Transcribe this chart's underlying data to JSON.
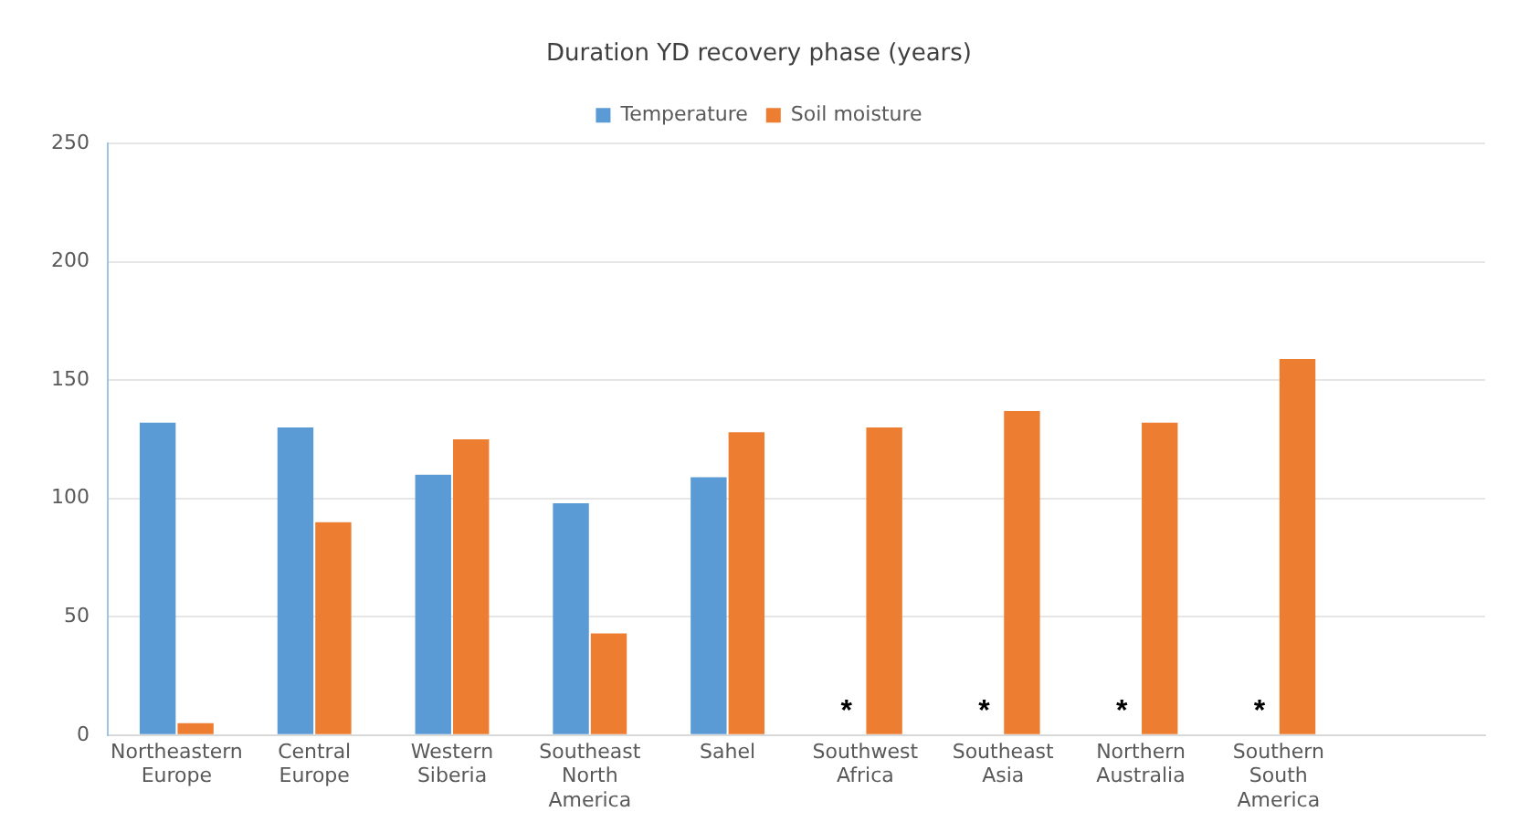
{
  "chart_data": {
    "type": "bar",
    "title": "Duration YD recovery phase (years)",
    "categories": [
      "Northeastern Europe",
      "Central Europe",
      "Western Siberia",
      "Southeast North America",
      "Sahel",
      "Southwest Africa",
      "Southeast Asia",
      "Northern Australia",
      "Southern South America",
      null
    ],
    "series": [
      {
        "name": "Temperature",
        "color": "#5b9bd5",
        "values": [
          132,
          130,
          110,
          98,
          109,
          null,
          null,
          null,
          null,
          null
        ]
      },
      {
        "name": "Soil moisture",
        "color": "#ed7d31",
        "values": [
          5,
          90,
          125,
          43,
          128,
          130,
          137,
          132,
          159,
          null
        ]
      }
    ],
    "annotations": [
      {
        "text": "*",
        "x": "Southwest Africa",
        "y": 10
      },
      {
        "text": "*",
        "x": "Southeast Asia",
        "y": 10
      },
      {
        "text": "*",
        "x": "Northern Australia",
        "y": 10
      },
      {
        "text": "*",
        "x": "Southern South America",
        "y": 10
      }
    ],
    "ylim": [
      0,
      250
    ],
    "yticks": [
      0,
      50,
      100,
      150,
      200,
      250
    ],
    "grid": "y",
    "legend": "top"
  }
}
